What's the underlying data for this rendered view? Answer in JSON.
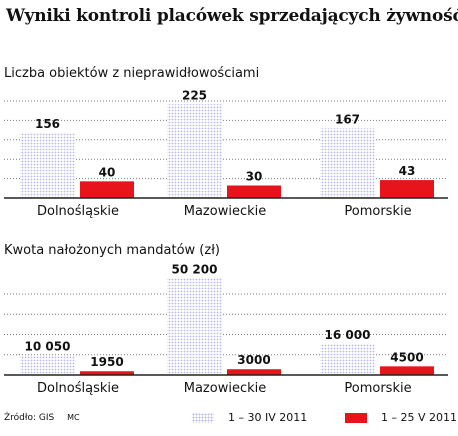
{
  "title": "Wyniki kontroli placówek sprzedających żywność",
  "source": {
    "label": "Źródło: GIS",
    "author": "MC"
  },
  "colors": {
    "series_1": "#c9c9ee",
    "series_2": "#e8141b",
    "gridline": "#7a7a7a",
    "axis": "#222222"
  },
  "legend": [
    {
      "label": "1 – 30 IV 2011",
      "style": "dotted"
    },
    {
      "label": "1 – 25 V 2011",
      "style": "solid"
    }
  ],
  "chart_data": [
    {
      "type": "bar",
      "title": "Liczba obiektów z nieprawidłowościami",
      "categories": [
        "Dolnośląskie",
        "Mazowieckie",
        "Pomorskie"
      ],
      "series": [
        {
          "name": "1 – 30 IV 2011",
          "values": [
            156,
            225,
            167
          ],
          "labels": [
            "156",
            "225",
            "167"
          ]
        },
        {
          "name": "1 – 25 V 2011",
          "values": [
            40,
            30,
            43
          ],
          "labels": [
            "40",
            "30",
            "43"
          ]
        }
      ],
      "ylim": [
        0,
        240
      ],
      "grid": true,
      "legend": "bottom-right"
    },
    {
      "type": "bar",
      "title": "Kwota nałożonych mandatów (zł)",
      "categories": [
        "Dolnośląskie",
        "Mazowieckie",
        "Pomorskie"
      ],
      "series": [
        {
          "name": "1 – 30 IV 2011",
          "values": [
            10050,
            50200,
            16000
          ],
          "labels": [
            "10 050",
            "50 200",
            "16 000"
          ]
        },
        {
          "name": "1 – 25 V 2011",
          "values": [
            1950,
            3000,
            4500
          ],
          "labels": [
            "1950",
            "3000",
            "4500"
          ]
        }
      ],
      "ylim": [
        0,
        54000
      ],
      "grid": true,
      "legend": "bottom-right"
    }
  ]
}
